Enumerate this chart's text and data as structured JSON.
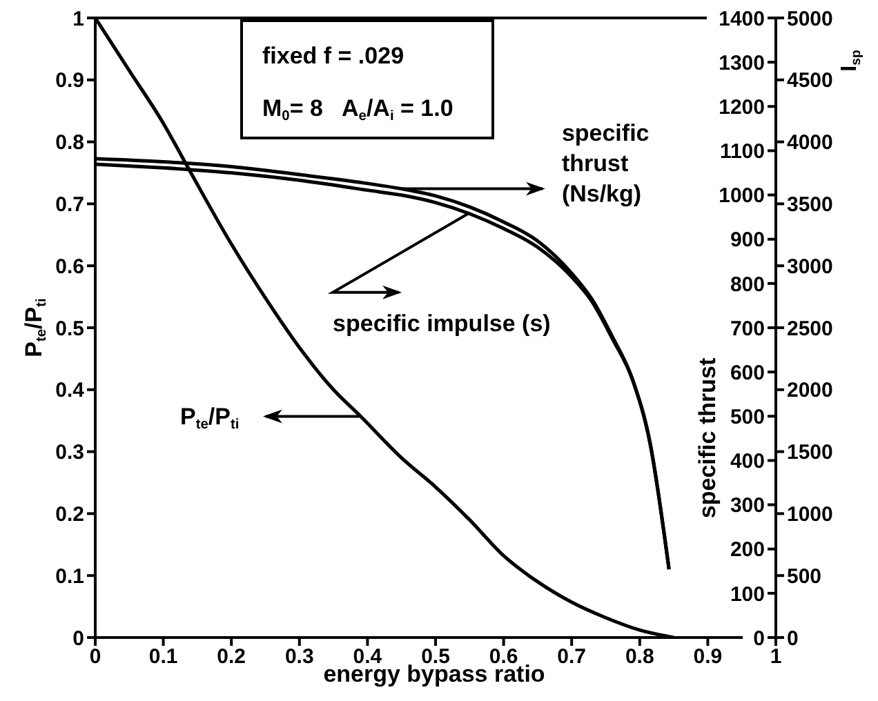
{
  "chart_data": {
    "type": "line",
    "xlabel": "energy bypass ratio",
    "ylabel": "P$_{te}$/P$_{ti}$",
    "y2label": "specific thrust",
    "y3label": "I$_{sp}$",
    "annotations": [
      "fixed f = .029",
      "M$_{0}$= 8   A$_{e}$/A$_{i}$ = 1.0"
    ],
    "xlim": [
      0,
      1
    ],
    "xticks": [
      0,
      0.1,
      0.2,
      0.3,
      0.4,
      0.5,
      0.6,
      0.7,
      0.8,
      0.9,
      1
    ],
    "ylim": [
      0,
      1
    ],
    "yticks": [
      0,
      0.1,
      0.2,
      0.3,
      0.4,
      0.5,
      0.6,
      0.7,
      0.8,
      0.9,
      1
    ],
    "y2lim": [
      0,
      1400
    ],
    "y2ticks": [
      0,
      100,
      200,
      300,
      400,
      500,
      600,
      700,
      800,
      900,
      1000,
      1100,
      1200,
      1300,
      1400
    ],
    "y3lim": [
      0,
      5000
    ],
    "y3ticks": [
      0,
      500,
      1000,
      1500,
      2000,
      2500,
      3000,
      3500,
      4000,
      4500,
      5000
    ],
    "line_style": "solid",
    "series": [
      {
        "name": "P$_{te}$/P$_{ti}$",
        "color": "#000000",
        "x": [
          0,
          0.05,
          0.1,
          0.138,
          0.2,
          0.25,
          0.3,
          0.35,
          0.39,
          0.45,
          0.5,
          0.55,
          0.6,
          0.65,
          0.7,
          0.75,
          0.8,
          0.85
        ],
        "values": [
          1,
          0.915,
          0.83,
          0.755,
          0.635,
          0.548,
          0.468,
          0.4,
          0.357,
          0.29,
          0.243,
          0.19,
          0.132,
          0.09,
          0.057,
          0.032,
          0.012,
          0
        ]
      },
      {
        "name": "specific thrust (Ns/kg)",
        "axis": "y2",
        "color": "#000000",
        "x": [
          0,
          0.1,
          0.2,
          0.3,
          0.4,
          0.45,
          0.5,
          0.55,
          0.6,
          0.65,
          0.7,
          0.73,
          0.76,
          0.79,
          0.815,
          0.843
        ],
        "values": [
          1082,
          1075,
          1064,
          1046,
          1026,
          1014,
          998,
          973,
          939,
          896,
          823,
          764,
          679,
          581,
          442,
          155
        ]
      },
      {
        "name": "specific impulse (s)",
        "axis": "y3",
        "color": "#000000",
        "x": [
          0,
          0.1,
          0.2,
          0.3,
          0.4,
          0.45,
          0.5,
          0.55,
          0.6,
          0.65,
          0.7,
          0.73,
          0.76,
          0.79,
          0.815,
          0.843
        ],
        "values": [
          3820,
          3790,
          3750,
          3690,
          3610,
          3570,
          3510,
          3420,
          3300,
          3150,
          2910,
          2710,
          2410,
          2070,
          1570,
          550
        ]
      }
    ]
  }
}
